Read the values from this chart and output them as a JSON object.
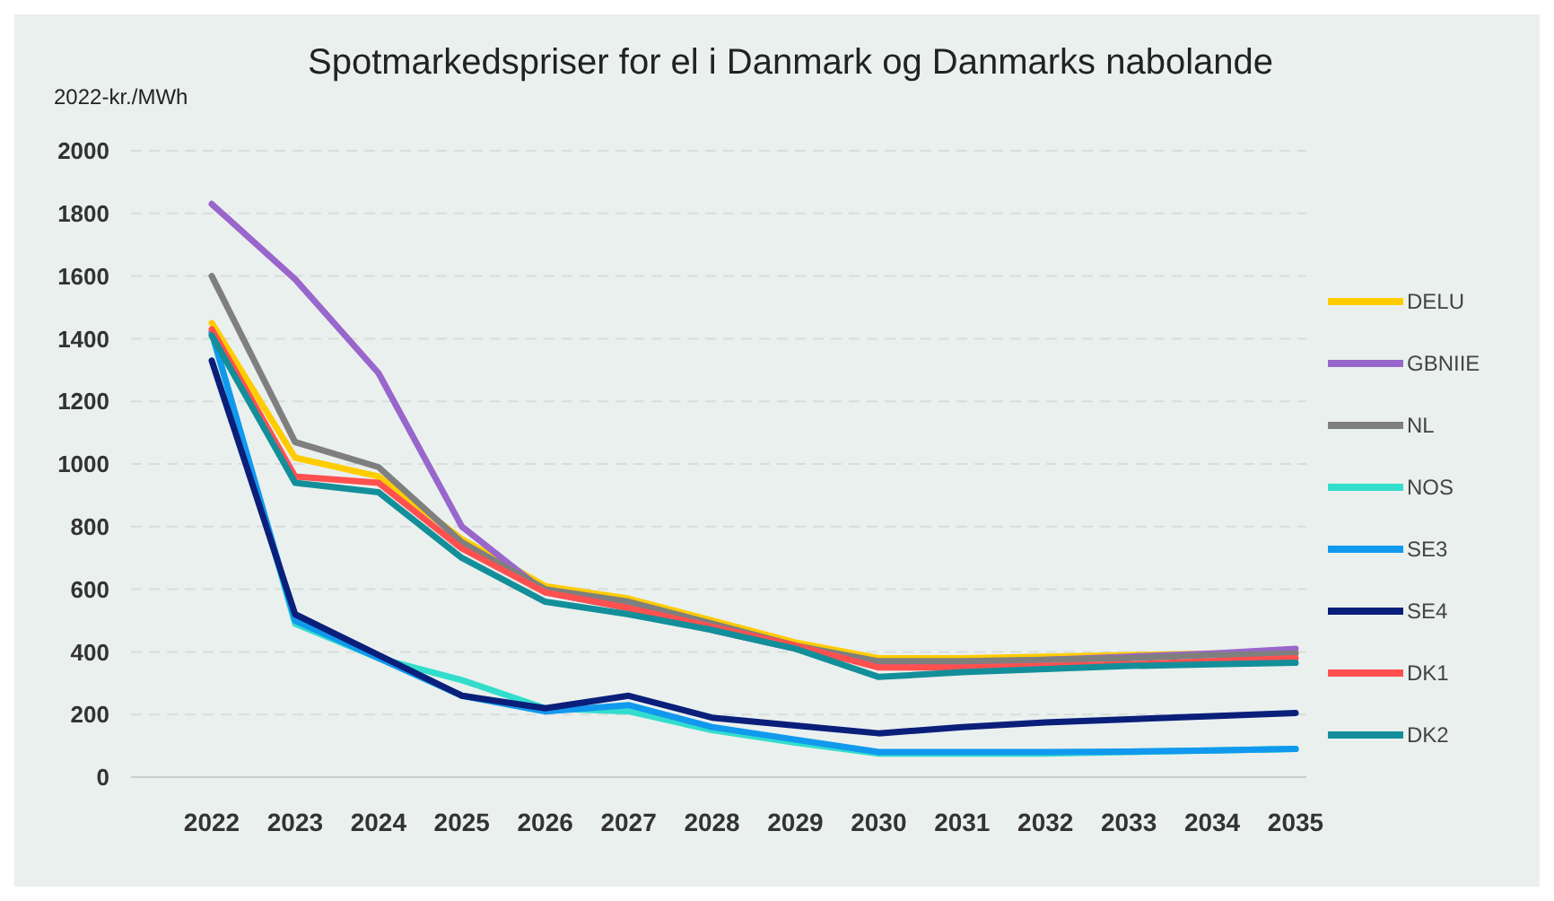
{
  "chart_data": {
    "type": "line",
    "title": "Spotmarkedspriser for el i Danmark og Danmarks nabolande",
    "ylabel": "2022-kr./MWh",
    "categories": [
      "2022",
      "2023",
      "2024",
      "2025",
      "2026",
      "2027",
      "2028",
      "2029",
      "2030",
      "2031",
      "2032",
      "2033",
      "2034",
      "2035"
    ],
    "ylim": [
      0,
      2000
    ],
    "yticks": [
      0,
      200,
      400,
      600,
      800,
      1000,
      1200,
      1400,
      1600,
      1800,
      2000
    ],
    "grid": "y",
    "legend": "right",
    "line_style": "solid",
    "marker": "none",
    "series": [
      {
        "name": "DELU",
        "color": "#ffcc00",
        "values": [
          1450,
          1020,
          960,
          760,
          610,
          570,
          500,
          430,
          380,
          380,
          385,
          390,
          395,
          400
        ]
      },
      {
        "name": "GBNIIE",
        "color": "#9966cc",
        "values": [
          1830,
          1590,
          1290,
          800,
          590,
          540,
          470,
          410,
          360,
          365,
          375,
          385,
          395,
          410
        ]
      },
      {
        "name": "NL",
        "color": "#7f7f7f",
        "values": [
          1600,
          1070,
          990,
          750,
          600,
          560,
          490,
          420,
          370,
          370,
          375,
          380,
          390,
          395
        ]
      },
      {
        "name": "NOS",
        "color": "#33ddcc",
        "values": [
          1420,
          490,
          380,
          310,
          220,
          210,
          150,
          110,
          75,
          75,
          75,
          80,
          85,
          90
        ]
      },
      {
        "name": "SE3",
        "color": "#1199ee",
        "values": [
          1420,
          500,
          380,
          260,
          210,
          230,
          160,
          120,
          80,
          80,
          80,
          82,
          85,
          90
        ]
      },
      {
        "name": "SE4",
        "color": "#0a1f7a",
        "values": [
          1330,
          520,
          390,
          260,
          220,
          260,
          190,
          165,
          140,
          160,
          175,
          185,
          195,
          205
        ]
      },
      {
        "name": "DK1",
        "color": "#ff5050",
        "values": [
          1430,
          960,
          940,
          730,
          590,
          540,
          480,
          420,
          350,
          350,
          355,
          360,
          370,
          380
        ]
      },
      {
        "name": "DK2",
        "color": "#138f9a",
        "values": [
          1410,
          940,
          910,
          700,
          560,
          520,
          470,
          410,
          320,
          335,
          345,
          355,
          360,
          365
        ]
      }
    ]
  }
}
